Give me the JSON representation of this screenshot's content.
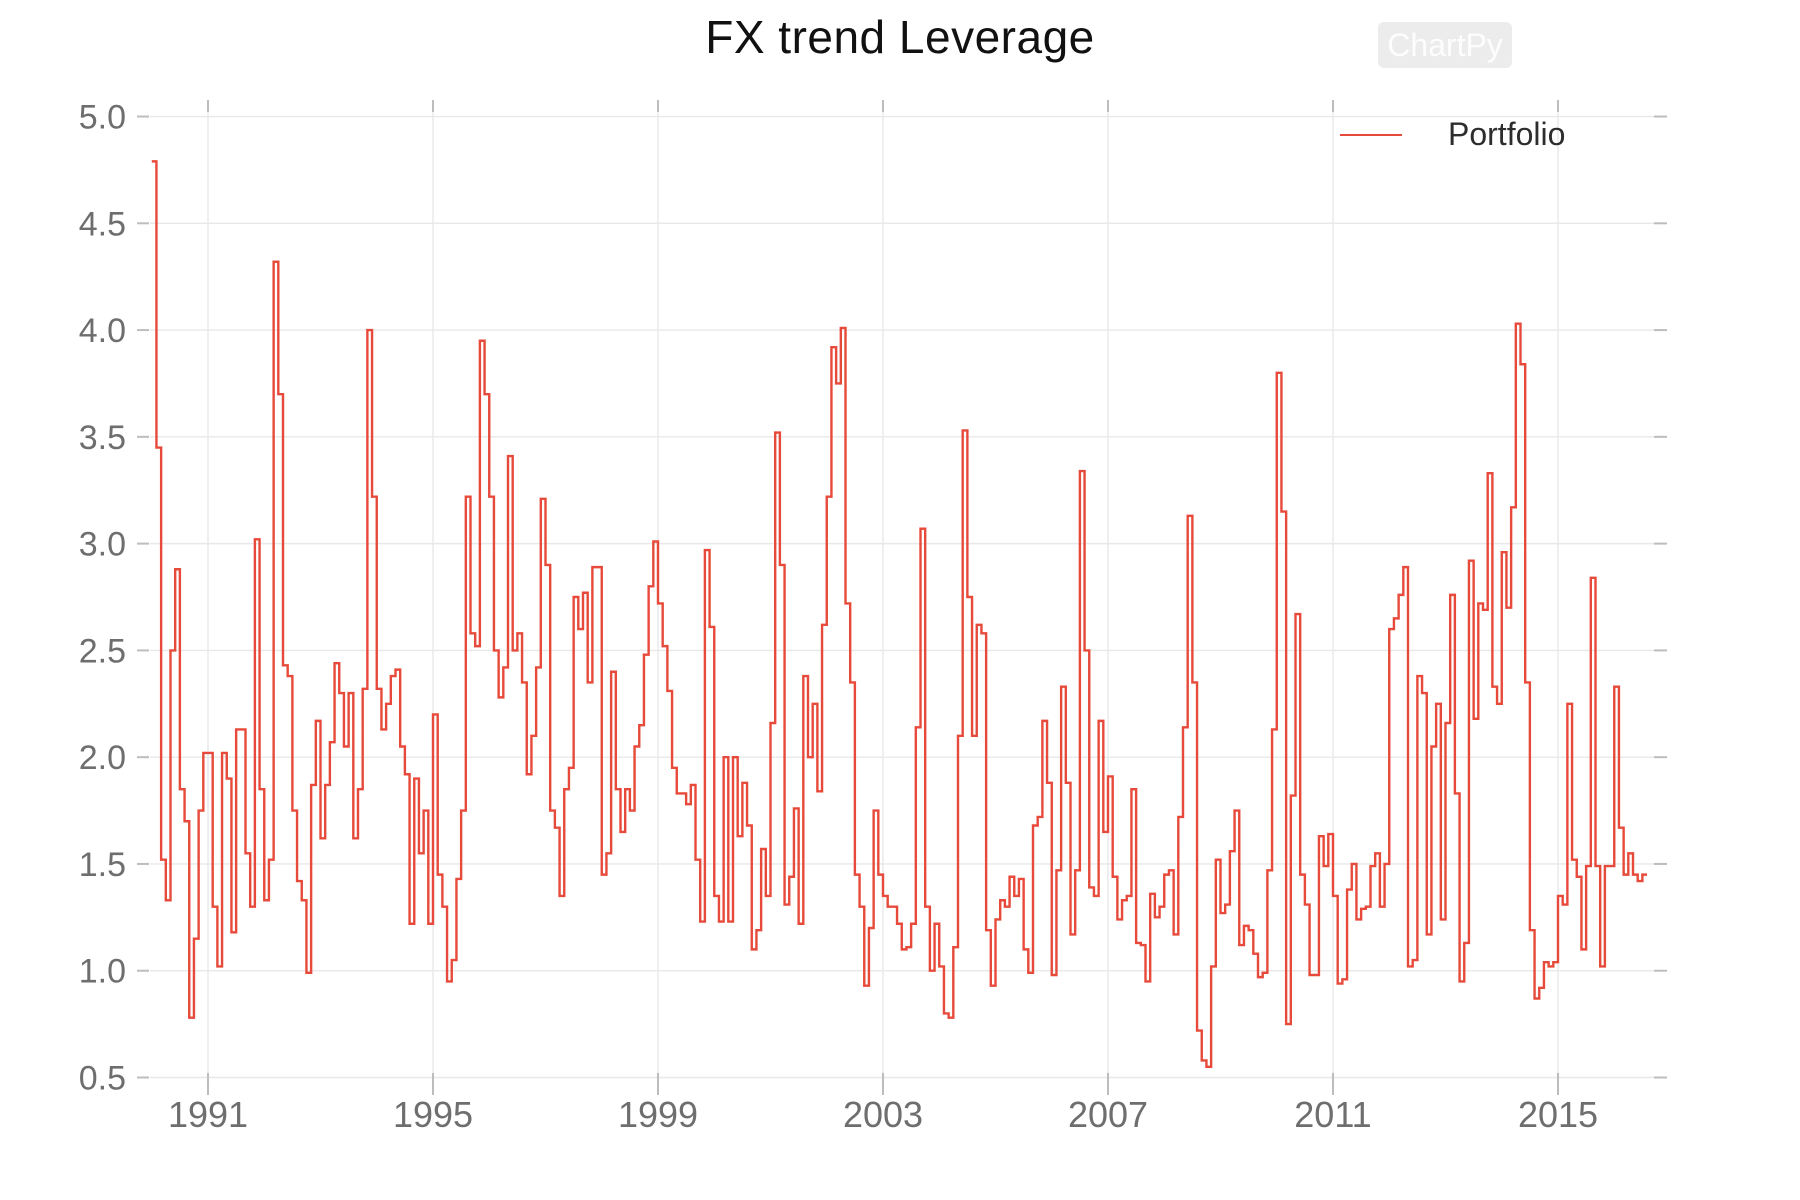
{
  "title": "FX trend Leverage",
  "watermark": "ChartPy",
  "legend": {
    "label": "Portfolio",
    "position": "top-right"
  },
  "colors": {
    "series": "#e74a3a",
    "grid": "#e8e8e8",
    "tick": "#bdbdbd",
    "tick_label": "#6e6e6e",
    "title": "#111111"
  },
  "chart_data": {
    "type": "line",
    "style": "step",
    "title": "FX trend Leverage",
    "xlabel": "",
    "ylabel": "",
    "grid": true,
    "legend_position": "top-right",
    "ylim": [
      0.4,
      5.08
    ],
    "y_ticks": [
      0.5,
      1.0,
      1.5,
      2.0,
      2.5,
      3.0,
      3.5,
      4.0,
      4.5,
      5.0
    ],
    "x_tick_labels": [
      "1991",
      "1995",
      "1999",
      "2003",
      "2007",
      "2011",
      "2015"
    ],
    "x_tick_years": [
      1991,
      1995,
      1999,
      2003,
      2007,
      2011,
      2015
    ],
    "x_start": "1990-01",
    "x_frequency": "monthly",
    "series": [
      {
        "name": "Portfolio",
        "color": "#e74a3a",
        "values": [
          4.79,
          3.45,
          1.52,
          1.33,
          2.5,
          2.88,
          1.85,
          1.7,
          0.78,
          1.15,
          1.75,
          2.02,
          2.02,
          1.3,
          1.02,
          2.02,
          1.9,
          1.18,
          2.13,
          2.13,
          1.55,
          1.3,
          3.02,
          1.85,
          1.33,
          1.52,
          4.32,
          3.7,
          2.43,
          2.38,
          1.75,
          1.42,
          1.33,
          0.99,
          1.87,
          2.17,
          1.62,
          1.87,
          2.07,
          2.44,
          2.3,
          2.05,
          2.3,
          1.62,
          1.85,
          2.32,
          4.0,
          3.22,
          2.32,
          2.13,
          2.25,
          2.38,
          2.41,
          2.05,
          1.92,
          1.22,
          1.9,
          1.55,
          1.75,
          1.22,
          2.2,
          1.45,
          1.3,
          0.95,
          1.05,
          1.43,
          1.75,
          3.22,
          2.58,
          2.52,
          3.95,
          3.7,
          3.22,
          2.5,
          2.28,
          2.42,
          3.41,
          2.5,
          2.58,
          2.35,
          1.92,
          2.1,
          2.42,
          3.21,
          2.9,
          1.75,
          1.67,
          1.35,
          1.85,
          1.95,
          2.75,
          2.6,
          2.77,
          2.35,
          2.89,
          2.89,
          1.45,
          1.55,
          2.4,
          1.85,
          1.65,
          1.85,
          1.75,
          2.05,
          2.15,
          2.48,
          2.8,
          3.01,
          2.72,
          2.52,
          2.31,
          1.95,
          1.83,
          1.83,
          1.78,
          1.87,
          1.52,
          1.23,
          2.97,
          2.61,
          1.35,
          1.23,
          2.0,
          1.23,
          2.0,
          1.63,
          1.88,
          1.68,
          1.1,
          1.19,
          1.57,
          1.35,
          2.16,
          3.52,
          2.9,
          1.31,
          1.44,
          1.76,
          1.22,
          2.38,
          2.0,
          2.25,
          1.84,
          2.62,
          3.22,
          3.92,
          3.75,
          4.01,
          2.72,
          2.35,
          1.45,
          1.3,
          0.93,
          1.2,
          1.75,
          1.45,
          1.35,
          1.3,
          1.3,
          1.22,
          1.1,
          1.11,
          1.22,
          2.14,
          3.07,
          1.3,
          1.0,
          1.22,
          1.02,
          0.8,
          0.78,
          1.11,
          2.1,
          3.53,
          2.75,
          2.1,
          2.62,
          2.58,
          1.19,
          0.93,
          1.24,
          1.33,
          1.3,
          1.44,
          1.35,
          1.43,
          1.1,
          0.99,
          1.68,
          1.72,
          2.17,
          1.88,
          0.98,
          1.47,
          2.33,
          1.88,
          1.17,
          1.47,
          3.34,
          2.5,
          1.39,
          1.35,
          2.17,
          1.65,
          1.91,
          1.44,
          1.24,
          1.33,
          1.35,
          1.85,
          1.13,
          1.12,
          0.95,
          1.36,
          1.25,
          1.3,
          1.45,
          1.47,
          1.17,
          1.72,
          2.14,
          3.13,
          2.35,
          0.72,
          0.58,
          0.55,
          1.02,
          1.52,
          1.27,
          1.31,
          1.56,
          1.75,
          1.12,
          1.21,
          1.19,
          1.08,
          0.97,
          0.99,
          1.47,
          2.13,
          3.8,
          3.15,
          0.75,
          1.82,
          2.67,
          1.45,
          1.31,
          0.98,
          0.98,
          1.63,
          1.49,
          1.64,
          1.35,
          0.94,
          0.96,
          1.38,
          1.5,
          1.24,
          1.29,
          1.3,
          1.49,
          1.55,
          1.3,
          1.5,
          2.6,
          2.65,
          2.76,
          2.89,
          1.02,
          1.05,
          2.38,
          2.3,
          1.17,
          2.05,
          2.25,
          1.24,
          2.16,
          2.76,
          1.83,
          0.95,
          1.13,
          2.92,
          2.18,
          2.72,
          2.69,
          3.33,
          2.33,
          2.25,
          2.96,
          2.7,
          3.17,
          4.03,
          3.84,
          2.35,
          1.19,
          0.87,
          0.92,
          1.04,
          1.02,
          1.04,
          1.35,
          1.31,
          2.25,
          1.52,
          1.44,
          1.1,
          1.49,
          2.84,
          1.49,
          1.02,
          1.49,
          1.49,
          2.33,
          1.67,
          1.45,
          1.55,
          1.45,
          1.42,
          1.45
        ]
      }
    ]
  }
}
